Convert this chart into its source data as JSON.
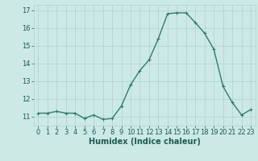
{
  "x": [
    0,
    1,
    2,
    3,
    4,
    5,
    6,
    7,
    8,
    9,
    10,
    11,
    12,
    13,
    14,
    15,
    16,
    17,
    18,
    19,
    20,
    21,
    22,
    23
  ],
  "y": [
    11.2,
    11.2,
    11.3,
    11.2,
    11.2,
    10.9,
    11.1,
    10.85,
    10.9,
    11.6,
    12.8,
    13.6,
    14.2,
    15.4,
    16.8,
    16.85,
    16.85,
    16.3,
    15.7,
    14.8,
    12.7,
    11.8,
    11.1,
    11.4
  ],
  "xlabel": "Humidex (Indice chaleur)",
  "xlim": [
    -0.5,
    23.5
  ],
  "ylim": [
    10.5,
    17.3
  ],
  "yticks": [
    11,
    12,
    13,
    14,
    15,
    16,
    17
  ],
  "xticks": [
    0,
    1,
    2,
    3,
    4,
    5,
    6,
    7,
    8,
    9,
    10,
    11,
    12,
    13,
    14,
    15,
    16,
    17,
    18,
    19,
    20,
    21,
    22,
    23
  ],
  "line_color": "#2e7d6f",
  "marker": "+",
  "bg_color": "#cce9e6",
  "grid_color": "#aad4d0",
  "label_color": "#1a5c52",
  "tick_label_color": "#1a5c52",
  "xlabel_fontsize": 7,
  "tick_fontsize": 6,
  "linewidth": 1.0,
  "markersize": 3,
  "markeredgewidth": 0.8
}
